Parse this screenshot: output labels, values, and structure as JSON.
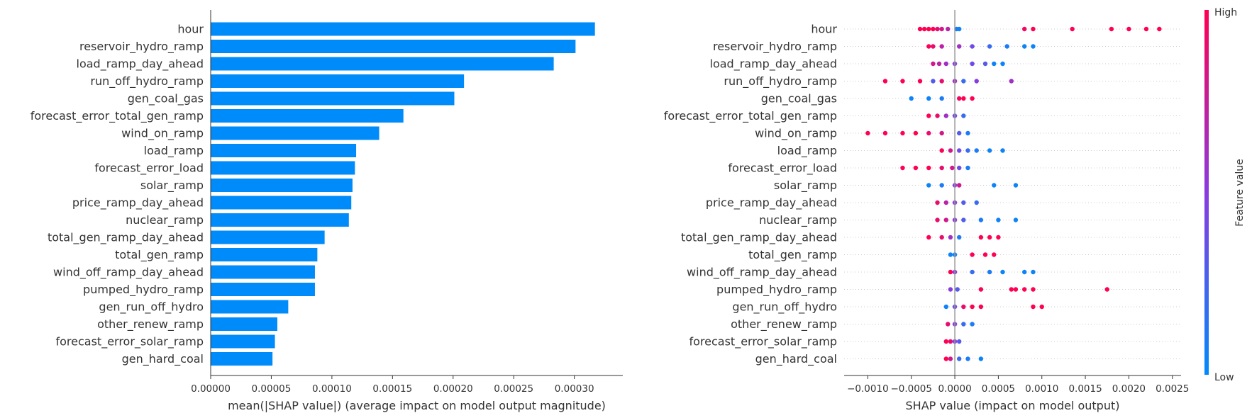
{
  "chart_data": [
    {
      "type": "bar",
      "orientation": "horizontal",
      "xlabel": "mean(|SHAP value|) (average impact on model output magnitude)",
      "xlim": [
        0,
        0.00034
      ],
      "xticks": [
        "0.00000",
        "0.00005",
        "0.00010",
        "0.00015",
        "0.00020",
        "0.00025",
        "0.00030"
      ],
      "bar_color": "#008bfb",
      "categories": [
        "hour",
        "reservoir_hydro_ramp",
        "load_ramp_day_ahead",
        "run_off_hydro_ramp",
        "gen_coal_gas",
        "forecast_error_total_gen_ramp",
        "wind_on_ramp",
        "load_ramp",
        "forecast_error_load",
        "solar_ramp",
        "price_ramp_day_ahead",
        "nuclear_ramp",
        "total_gen_ramp_day_ahead",
        "total_gen_ramp",
        "wind_off_ramp_day_ahead",
        "pumped_hydro_ramp",
        "gen_run_off_hydro",
        "other_renew_ramp",
        "forecast_error_solar_ramp",
        "gen_hard_coal"
      ],
      "values": [
        0.000317,
        0.000301,
        0.000283,
        0.000209,
        0.000201,
        0.000159,
        0.000139,
        0.00012,
        0.000119,
        0.000117,
        0.000116,
        0.000114,
        9.4e-05,
        8.8e-05,
        8.6e-05,
        8.6e-05,
        6.4e-05,
        5.5e-05,
        5.3e-05,
        5.1e-05
      ]
    },
    {
      "type": "scatter",
      "subtype": "beeswarm",
      "xlabel": "SHAP value (impact on model output)",
      "xlim": [
        -0.00115,
        0.0026
      ],
      "xticks": [
        "−0.0010",
        "−0.0005",
        "0.0000",
        "0.0005",
        "0.0010",
        "0.0015",
        "0.0020",
        "0.0025"
      ],
      "features": [
        "hour",
        "reservoir_hydro_ramp",
        "load_ramp_day_ahead",
        "run_off_hydro_ramp",
        "gen_coal_gas",
        "forecast_error_total_gen_ramp",
        "wind_on_ramp",
        "load_ramp",
        "forecast_error_load",
        "solar_ramp",
        "price_ramp_day_ahead",
        "nuclear_ramp",
        "total_gen_ramp_day_ahead",
        "total_gen_ramp",
        "wind_off_ramp_day_ahead",
        "pumped_hydro_ramp",
        "gen_run_off_hydro",
        "other_renew_ramp",
        "forecast_error_solar_ramp",
        "gen_hard_coal"
      ],
      "feature_points": [
        [
          [
            -0.0004,
            1
          ],
          [
            -0.00035,
            1
          ],
          [
            -0.0003,
            1
          ],
          [
            -0.00025,
            1
          ],
          [
            -0.0002,
            0.9
          ],
          [
            -0.00015,
            0.8
          ],
          [
            -8e-05,
            0.7
          ],
          [
            2e-05,
            0.1
          ],
          [
            5e-05,
            0.05
          ],
          [
            0.0008,
            0.95
          ],
          [
            0.0009,
            1
          ],
          [
            0.00135,
            1
          ],
          [
            0.0018,
            1
          ],
          [
            0.002,
            1
          ],
          [
            0.0022,
            1
          ],
          [
            0.00235,
            1
          ]
        ],
        [
          [
            -0.0003,
            1
          ],
          [
            -0.00025,
            0.9
          ],
          [
            -0.00015,
            0.7
          ],
          [
            5e-05,
            0.6
          ],
          [
            0.0002,
            0.4
          ],
          [
            0.0004,
            0.2
          ],
          [
            0.0006,
            0.1
          ],
          [
            0.0008,
            0.05
          ],
          [
            0.0009,
            0.05
          ]
        ],
        [
          [
            -0.00025,
            0.8
          ],
          [
            -0.00018,
            0.7
          ],
          [
            -0.0001,
            0.6
          ],
          [
            0.0,
            0.5
          ],
          [
            0.0002,
            0.4
          ],
          [
            0.00035,
            0.3
          ],
          [
            0.00045,
            0.05
          ],
          [
            0.00055,
            0.05
          ]
        ],
        [
          [
            -0.0008,
            1
          ],
          [
            -0.0006,
            1
          ],
          [
            -0.0004,
            1
          ],
          [
            -0.00025,
            0.3
          ],
          [
            -0.00015,
            0.9
          ],
          [
            0.0,
            0.6
          ],
          [
            0.0001,
            0.2
          ],
          [
            0.00025,
            0.5
          ],
          [
            0.00065,
            0.6
          ]
        ],
        [
          [
            -0.0005,
            0.05
          ],
          [
            -0.0003,
            0.05
          ],
          [
            -0.00015,
            0.1
          ],
          [
            5e-05,
            0.95
          ],
          [
            0.0001,
            1
          ],
          [
            0.0002,
            1
          ]
        ],
        [
          [
            -0.0003,
            1
          ],
          [
            -0.0002,
            0.9
          ],
          [
            -0.0001,
            0.6
          ],
          [
            0.0,
            0.4
          ],
          [
            0.0001,
            0.2
          ]
        ],
        [
          [
            -0.001,
            1
          ],
          [
            -0.0008,
            1
          ],
          [
            -0.0006,
            1
          ],
          [
            -0.00045,
            1
          ],
          [
            -0.0003,
            0.9
          ],
          [
            -0.00015,
            0.8
          ],
          [
            5e-05,
            0.3
          ],
          [
            0.00015,
            0.1
          ]
        ],
        [
          [
            -0.00015,
            1
          ],
          [
            -5e-05,
            0.8
          ],
          [
            5e-05,
            0.4
          ],
          [
            0.00015,
            0.2
          ],
          [
            0.00025,
            0.1
          ],
          [
            0.0004,
            0.05
          ],
          [
            0.00055,
            0.05
          ]
        ],
        [
          [
            -0.0006,
            1
          ],
          [
            -0.00045,
            1
          ],
          [
            -0.0003,
            1
          ],
          [
            -0.00015,
            0.9
          ],
          [
            -3e-05,
            0.8
          ],
          [
            5e-05,
            0.4
          ],
          [
            0.00015,
            0.1
          ]
        ],
        [
          [
            -0.0003,
            0.05
          ],
          [
            -0.00015,
            0.1
          ],
          [
            0.0,
            0.5
          ],
          [
            5e-05,
            0.8
          ],
          [
            0.00045,
            0.05
          ],
          [
            0.0007,
            0.05
          ]
        ],
        [
          [
            -0.0002,
            0.9
          ],
          [
            -0.0001,
            0.7
          ],
          [
            0.0,
            0.5
          ],
          [
            0.0001,
            0.3
          ],
          [
            0.00025,
            0.2
          ]
        ],
        [
          [
            -0.0002,
            0.9
          ],
          [
            -0.0001,
            0.8
          ],
          [
            0.0,
            0.5
          ],
          [
            0.0001,
            0.3
          ],
          [
            0.0003,
            0.1
          ],
          [
            0.0005,
            0.05
          ],
          [
            0.0007,
            0.05
          ]
        ],
        [
          [
            -0.0003,
            1
          ],
          [
            -0.00015,
            0.9
          ],
          [
            -5e-05,
            0.6
          ],
          [
            5e-05,
            0.1
          ],
          [
            0.0003,
            1
          ],
          [
            0.0004,
            1
          ],
          [
            0.0005,
            1
          ]
        ],
        [
          [
            -5e-05,
            0.05
          ],
          [
            0.0,
            0.05
          ],
          [
            0.0002,
            1
          ],
          [
            0.00035,
            1
          ],
          [
            0.00045,
            1
          ]
        ],
        [
          [
            -5e-05,
            1
          ],
          [
            0.0,
            0.5
          ],
          [
            0.0002,
            0.2
          ],
          [
            0.0004,
            0.1
          ],
          [
            0.00055,
            0.05
          ],
          [
            0.0008,
            0.05
          ],
          [
            0.0009,
            0.05
          ]
        ],
        [
          [
            -5e-05,
            0.5
          ],
          [
            3e-05,
            0.3
          ],
          [
            0.0003,
            1
          ],
          [
            0.00065,
            1
          ],
          [
            0.0007,
            1
          ],
          [
            0.0008,
            1
          ],
          [
            0.0009,
            1
          ],
          [
            0.00175,
            1
          ]
        ],
        [
          [
            -0.0001,
            0.05
          ],
          [
            0.0,
            0.4
          ],
          [
            0.0001,
            0.9
          ],
          [
            0.0002,
            1
          ],
          [
            0.0003,
            1
          ],
          [
            0.0009,
            1
          ],
          [
            0.001,
            1
          ]
        ],
        [
          [
            -8e-05,
            0.9
          ],
          [
            0.0,
            0.5
          ],
          [
            0.0001,
            0.2
          ],
          [
            0.0002,
            0.1
          ]
        ],
        [
          [
            -0.0001,
            1
          ],
          [
            -5e-05,
            0.9
          ],
          [
            0.0,
            0.5
          ],
          [
            5e-05,
            0.3
          ]
        ],
        [
          [
            -0.0001,
            1
          ],
          [
            -5e-05,
            0.8
          ],
          [
            5e-05,
            0.2
          ],
          [
            0.00015,
            0.1
          ],
          [
            0.0003,
            0.05
          ]
        ]
      ],
      "colorbar": {
        "title": "Feature value",
        "high_label": "High",
        "low_label": "Low",
        "color_high": "#ff0052",
        "color_low": "#008bfb"
      },
      "zero_line": true,
      "gridlines": "dotted horizontal per feature"
    }
  ]
}
